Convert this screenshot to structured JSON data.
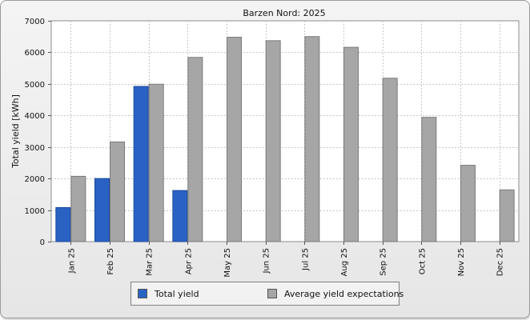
{
  "chart_data": {
    "type": "bar",
    "title": "Barzen Nord: 2025",
    "xlabel": "",
    "ylabel": "Total yield [kWh]",
    "ylim": [
      0,
      7000
    ],
    "yticks": [
      "0",
      "1000",
      "2000",
      "3000",
      "4000",
      "5000",
      "6000",
      "7000"
    ],
    "categories": [
      "Jan 25",
      "Feb 25",
      "Mar 25",
      "Apr 25",
      "May 25",
      "Jun 25",
      "Jul 25",
      "Aug 25",
      "Sep 25",
      "Oct 25",
      "Nov 25",
      "Dec 25"
    ],
    "series": [
      {
        "name": "Total yield",
        "color": "#2a62c4",
        "values": [
          1080,
          2000,
          4920,
          1620,
          null,
          null,
          null,
          null,
          null,
          null,
          null,
          null
        ]
      },
      {
        "name": "Average yield expectations",
        "color": "#a6a6a6",
        "values": [
          2070,
          3160,
          4990,
          5840,
          6480,
          6370,
          6500,
          6160,
          5180,
          3940,
          2420,
          1640
        ]
      }
    ],
    "grid": true,
    "legend_position": "bottom"
  }
}
